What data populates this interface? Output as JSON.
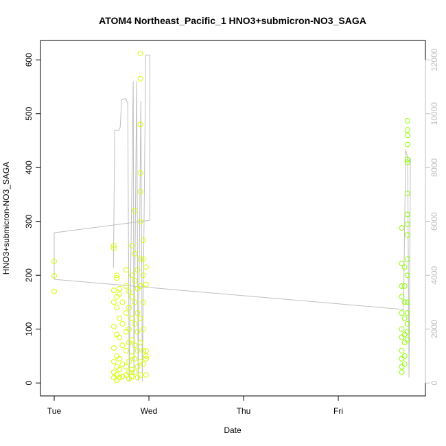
{
  "chart_data": {
    "type": "scatter",
    "title": "ATOM4 Northeast_Pacific_1 HNO3+submicron-NO3_SAGA",
    "x_label": "Date",
    "y_label": "HNO3+submicron-NO3_SAGA",
    "xlim": [
      -0.145,
      3.92
    ],
    "xticks": [
      {
        "value": 0,
        "label": "Tue"
      },
      {
        "value": 1,
        "label": "Wed"
      },
      {
        "value": 2,
        "label": "Thu"
      },
      {
        "value": 3,
        "label": "Fri"
      }
    ],
    "ylim": [
      -24,
      636
    ],
    "yticks": [
      0,
      100,
      200,
      300,
      400,
      500,
      600
    ],
    "y2lim": [
      -480,
      12720
    ],
    "y2ticks": [
      0,
      2000,
      4000,
      6000,
      8000,
      10000,
      12000
    ],
    "y2_color": "#bebebe",
    "series": [
      {
        "color": "#d4ff00",
        "x": [
          0,
          0,
          0,
          0.63,
          0.63,
          0.63,
          0.63,
          0.63,
          0.63,
          0.63,
          0.63,
          0.63,
          0.66,
          0.66,
          0.66,
          0.66,
          0.66,
          0.66,
          0.66,
          0.66,
          0.66,
          0.69,
          0.69,
          0.69,
          0.69,
          0.69,
          0.69,
          0.69,
          0.72,
          0.72,
          0.72,
          0.72,
          0.72,
          0.76,
          0.76,
          0.76,
          0.76,
          0.76,
          0.76,
          0.76,
          0.79,
          0.79,
          0.79,
          0.79,
          0.79,
          0.79,
          0.79,
          0.82,
          0.82,
          0.82,
          0.82,
          0.82,
          0.82,
          0.82,
          0.82,
          0.85,
          0.85,
          0.85,
          0.85,
          0.85,
          0.85,
          0.85,
          0.85,
          0.88,
          0.88,
          0.88,
          0.88,
          0.88,
          0.88,
          0.88,
          0.91,
          0.91,
          0.91,
          0.91,
          0.91,
          0.91,
          0.91,
          0.91,
          0.91,
          0.91,
          0.91,
          0.91,
          0.94,
          0.94,
          0.94,
          0.94,
          0.94,
          0.94,
          0.94,
          0.97,
          0.97,
          0.97,
          0.97,
          0.97,
          0.97
        ],
        "values": [
          226,
          199,
          170,
          255,
          250,
          172,
          150,
          105,
          65,
          40,
          20,
          10,
          200,
          195,
          160,
          140,
          90,
          50,
          30,
          15,
          5,
          175,
          165,
          120,
          85,
          45,
          25,
          10,
          150,
          110,
          70,
          35,
          12,
          210,
          180,
          130,
          95,
          60,
          30,
          15,
          170,
          140,
          100,
          75,
          40,
          20,
          8,
          255,
          200,
          160,
          120,
          80,
          50,
          25,
          12,
          320,
          240,
          190,
          150,
          110,
          70,
          45,
          20,
          210,
          175,
          130,
          95,
          60,
          30,
          10,
          612,
          565,
          480,
          390,
          355,
          300,
          230,
          180,
          120,
          75,
          40,
          15,
          265,
          230,
          200,
          150,
          100,
          60,
          35,
          215,
          183,
          60,
          50,
          45,
          15
        ]
      },
      {
        "color": "#8cff00",
        "x": [
          3.67,
          3.67,
          3.67,
          3.67,
          3.67,
          3.67,
          3.67,
          3.67,
          3.67,
          3.67,
          3.67,
          3.7,
          3.7,
          3.7,
          3.7,
          3.7,
          3.7,
          3.7,
          3.7,
          3.73,
          3.73,
          3.73,
          3.73,
          3.73,
          3.73,
          3.73,
          3.73,
          3.73,
          3.73,
          3.73,
          3.73,
          3.73,
          3.73,
          3.73,
          3.73,
          3.73
        ],
        "values": [
          288,
          222,
          180,
          160,
          130,
          100,
          85,
          60,
          45,
          30,
          20,
          215,
          180,
          150,
          120,
          90,
          75,
          50,
          35,
          487,
          470,
          460,
          443,
          415,
          410,
          352,
          313,
          295,
          275,
          230,
          200,
          150,
          130,
          110,
          95,
          80
        ]
      }
    ],
    "line": {
      "axis": "y2",
      "color": "#bebebe",
      "x": [
        0.625,
        0.639,
        0.683,
        0.697,
        0.712,
        0.755,
        0.777,
        0.792,
        0.835,
        0.842,
        0.871,
        0.886,
        0.915,
        0.93,
        0.951,
        0.966,
        1.002,
        1.009,
        1.009,
        0,
        0,
        3.689,
        3.711,
        3.733,
        3.747,
        3.762
      ],
      "values": [
        4280,
        9380,
        9380,
        9500,
        10520,
        10570,
        10400,
        80,
        11210,
        200,
        11210,
        80,
        10470,
        80,
        6830,
        12180,
        12180,
        12180,
        6040,
        5580,
        3850,
        2730,
        8660,
        8360,
        200,
        8360
      ]
    }
  }
}
